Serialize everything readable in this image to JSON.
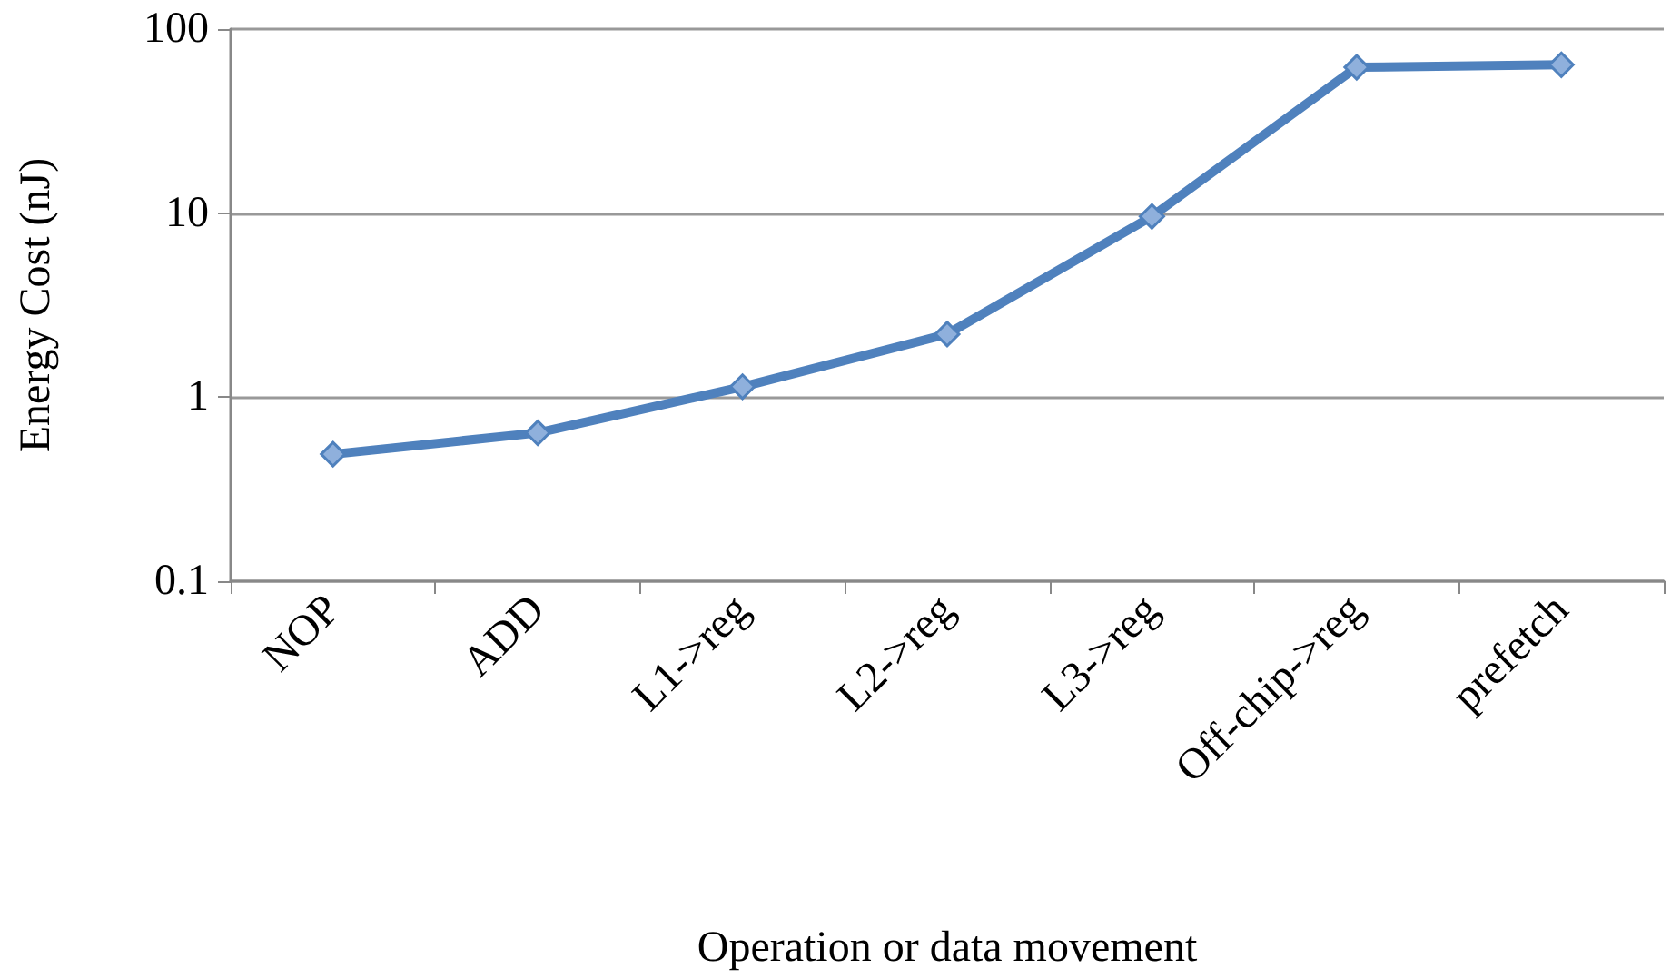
{
  "chart_data": {
    "type": "line",
    "xlabel": "Operation or data movement",
    "ylabel": "Energy Cost (nJ)",
    "categories": [
      "NOP",
      "ADD",
      "L1->reg",
      "L2->reg",
      "L3->reg",
      "Off-chip->reg",
      "prefetch"
    ],
    "series": [
      {
        "color": "#4f81bd",
        "values": [
          0.49,
          0.64,
          1.14,
          2.2,
          9.6,
          62,
          64
        ]
      }
    ],
    "log": "y",
    "ylim": [
      0.1,
      100
    ],
    "yticks": [
      0.1,
      1,
      10,
      100
    ],
    "grid": "y",
    "marker": "diamond",
    "line_style": "solid"
  }
}
